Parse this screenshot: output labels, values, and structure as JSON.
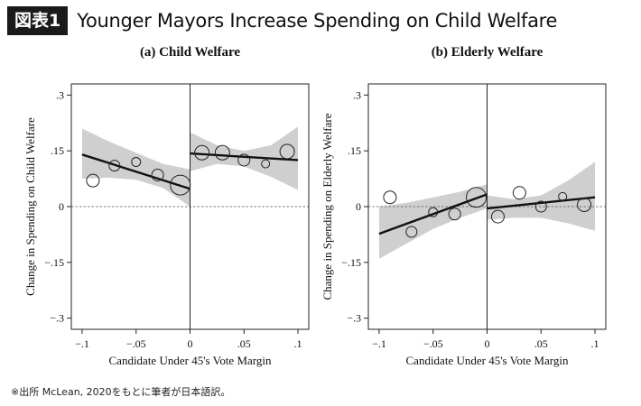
{
  "header": {
    "badge": "図表1",
    "title": "Younger Mayors Increase Spending on Child Welfare"
  },
  "footnote": "※出所 McLean, 2020をもとに筆者が日本語訳。",
  "chart_data": [
    {
      "type": "scatter",
      "title": "(a) Child Welfare",
      "xlabel": "Candidate Under 45's Vote Margin",
      "ylabel": "Change in Spending on Child Welfare",
      "xlim": [
        -0.11,
        0.11
      ],
      "ylim": [
        -0.33,
        0.33
      ],
      "xticks": [
        -0.1,
        -0.05,
        0,
        0.05,
        0.1
      ],
      "xtick_labels": [
        "−.1",
        "−.05",
        "0",
        ".05",
        ".1"
      ],
      "yticks": [
        -0.3,
        -0.15,
        0,
        0.15,
        0.3
      ],
      "ytick_labels": [
        "−.3",
        "−.15",
        "0",
        ".15",
        ".3"
      ],
      "cutoff": 0,
      "points": [
        {
          "x": -0.09,
          "y": 0.07,
          "size": 7
        },
        {
          "x": -0.07,
          "y": 0.11,
          "size": 6
        },
        {
          "x": -0.05,
          "y": 0.12,
          "size": 5
        },
        {
          "x": -0.03,
          "y": 0.085,
          "size": 6.5
        },
        {
          "x": -0.009,
          "y": 0.058,
          "size": 11
        },
        {
          "x": 0.011,
          "y": 0.145,
          "size": 8
        },
        {
          "x": 0.03,
          "y": 0.145,
          "size": 8
        },
        {
          "x": 0.05,
          "y": 0.125,
          "size": 6.5
        },
        {
          "x": 0.07,
          "y": 0.115,
          "size": 4.5
        },
        {
          "x": 0.09,
          "y": 0.148,
          "size": 8
        }
      ],
      "fit_left": {
        "x": [
          -0.1,
          0
        ],
        "y": [
          0.14,
          0.048
        ]
      },
      "fit_right": {
        "x": [
          0,
          0.1
        ],
        "y": [
          0.143,
          0.125
        ]
      },
      "ci_left": {
        "x": [
          -0.1,
          -0.075,
          -0.05,
          -0.025,
          0
        ],
        "upper": [
          0.21,
          0.175,
          0.145,
          0.115,
          0.1
        ],
        "lower": [
          0.075,
          0.078,
          0.072,
          0.05,
          0.0
        ]
      },
      "ci_right": {
        "x": [
          0,
          0.025,
          0.05,
          0.075,
          0.1
        ],
        "upper": [
          0.2,
          0.165,
          0.15,
          0.165,
          0.215
        ],
        "lower": [
          0.095,
          0.115,
          0.108,
          0.08,
          0.045
        ]
      }
    },
    {
      "type": "scatter",
      "title": "(b) Elderly Welfare",
      "xlabel": "Candidate Under 45's Vote Margin",
      "ylabel": "Change in Spending on Elderly Welfare",
      "xlim": [
        -0.11,
        0.11
      ],
      "ylim": [
        -0.33,
        0.33
      ],
      "xticks": [
        -0.1,
        -0.05,
        0,
        0.05,
        0.1
      ],
      "xtick_labels": [
        "−.1",
        "−.05",
        "0",
        ".05",
        ".1"
      ],
      "yticks": [
        -0.3,
        -0.15,
        0,
        0.15,
        0.3
      ],
      "ytick_labels": [
        "−.3",
        "−.15",
        "0",
        ".15",
        ".3"
      ],
      "cutoff": 0,
      "points": [
        {
          "x": -0.09,
          "y": 0.025,
          "size": 7
        },
        {
          "x": -0.07,
          "y": -0.068,
          "size": 6
        },
        {
          "x": -0.05,
          "y": -0.015,
          "size": 5
        },
        {
          "x": -0.03,
          "y": -0.02,
          "size": 6.5
        },
        {
          "x": -0.01,
          "y": 0.025,
          "size": 11
        },
        {
          "x": 0.01,
          "y": -0.027,
          "size": 7
        },
        {
          "x": 0.03,
          "y": 0.037,
          "size": 7
        },
        {
          "x": 0.05,
          "y": 0.0,
          "size": 6
        },
        {
          "x": 0.07,
          "y": 0.027,
          "size": 4.5
        },
        {
          "x": 0.09,
          "y": 0.005,
          "size": 7.5
        }
      ],
      "fit_left": {
        "x": [
          -0.1,
          0
        ],
        "y": [
          -0.073,
          0.033
        ]
      },
      "fit_right": {
        "x": [
          0,
          0.1
        ],
        "y": [
          -0.005,
          0.025
        ]
      },
      "ci_left": {
        "x": [
          -0.1,
          -0.075,
          -0.05,
          -0.025,
          0
        ],
        "upper": [
          0.0,
          0.01,
          0.025,
          0.04,
          0.06
        ],
        "lower": [
          -0.14,
          -0.1,
          -0.06,
          -0.03,
          -0.005
        ]
      },
      "ci_right": {
        "x": [
          0,
          0.025,
          0.05,
          0.075,
          0.1
        ],
        "upper": [
          0.03,
          0.02,
          0.03,
          0.07,
          0.12
        ],
        "lower": [
          -0.035,
          -0.03,
          -0.03,
          -0.045,
          -0.065
        ]
      }
    }
  ]
}
